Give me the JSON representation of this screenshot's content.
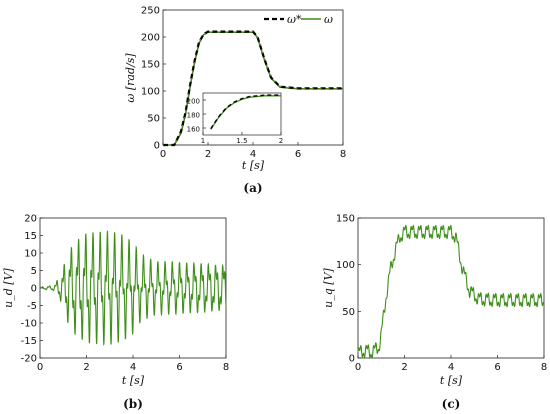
{
  "colors": {
    "green": "#3f8f1a",
    "ref": "#000000",
    "ref_dash_accent": "#c9a227"
  },
  "chart_data": [
    {
      "id": "a",
      "type": "line",
      "panel_label": "(a)",
      "xlabel": "t [s]",
      "ylabel": "ω [rad/s]",
      "xlim": [
        0,
        8
      ],
      "ylim": [
        0,
        250
      ],
      "xticks": [
        0,
        2,
        4,
        6,
        8
      ],
      "yticks": [
        0,
        50,
        100,
        150,
        200,
        250
      ],
      "legend": {
        "placement": "top-right",
        "entries": [
          "ω*",
          "ω"
        ]
      },
      "series": [
        {
          "name": "ω*",
          "style": "dashed",
          "x": [
            0,
            0.5,
            0.8,
            1.0,
            1.2,
            1.4,
            1.6,
            1.8,
            2.0,
            4.0,
            4.2,
            4.5,
            4.8,
            5.2,
            6.0,
            8.0
          ],
          "y": [
            0,
            0,
            25,
            60,
            110,
            155,
            190,
            205,
            210,
            210,
            200,
            160,
            125,
            108,
            105,
            105
          ]
        },
        {
          "name": "ω",
          "style": "solid",
          "x": [
            0,
            0.5,
            0.8,
            1.0,
            1.2,
            1.4,
            1.6,
            1.8,
            2.0,
            4.0,
            4.2,
            4.5,
            4.8,
            5.2,
            6.0,
            8.0
          ],
          "y": [
            0,
            0,
            22,
            57,
            107,
            152,
            188,
            204,
            209,
            209,
            199,
            159,
            124,
            107,
            104,
            104
          ]
        }
      ],
      "inset": {
        "xlim": [
          1,
          2
        ],
        "ylim": [
          150,
          210
        ],
        "xticks": [
          1,
          1.5,
          2
        ],
        "xtick_labels": [
          "1",
          "1.5",
          "2"
        ],
        "yticks": [
          160,
          180,
          200
        ],
        "x": [
          1.1,
          1.2,
          1.3,
          1.4,
          1.5,
          1.6,
          1.7,
          1.8,
          1.9,
          2.0
        ],
        "y": [
          158,
          175,
          188,
          196,
          201,
          204,
          205,
          206,
          206,
          206
        ]
      }
    },
    {
      "id": "b",
      "type": "line",
      "panel_label": "(b)",
      "xlabel": "t [s]",
      "ylabel": "u_d [V]",
      "xlim": [
        0,
        8
      ],
      "ylim": [
        -20,
        20
      ],
      "xticks": [
        0,
        2,
        4,
        6,
        8
      ],
      "yticks": [
        -20,
        -15,
        -10,
        -5,
        0,
        5,
        10,
        15,
        20
      ],
      "envelope_t": [
        0,
        0.6,
        0.9,
        1.2,
        1.5,
        2.0,
        2.5,
        3.0,
        3.5,
        4.0,
        4.3,
        4.6,
        5.0,
        6.0,
        7.0,
        8.0
      ],
      "envelope_amp": [
        0.3,
        0.8,
        4,
        10,
        13,
        15,
        15,
        15,
        14,
        12,
        9,
        8,
        7,
        7,
        7,
        7
      ]
    },
    {
      "id": "c",
      "type": "line",
      "panel_label": "(c)",
      "xlabel": "t [s]",
      "ylabel": "u_q [V]",
      "xlim": [
        0,
        8
      ],
      "ylim": [
        0,
        150
      ],
      "xticks": [
        0,
        2,
        4,
        6,
        8
      ],
      "yticks": [
        0,
        50,
        100,
        150
      ],
      "base_t": [
        0,
        0.3,
        0.6,
        0.9,
        1.0,
        1.2,
        1.4,
        1.6,
        1.8,
        2.0,
        4.0,
        4.2,
        4.5,
        4.8,
        5.2,
        6.0,
        8.0
      ],
      "base_y": [
        5,
        8,
        6,
        12,
        25,
        65,
        95,
        115,
        130,
        135,
        135,
        130,
        95,
        72,
        63,
        62,
        62
      ],
      "ripple_amp": 8
    }
  ]
}
